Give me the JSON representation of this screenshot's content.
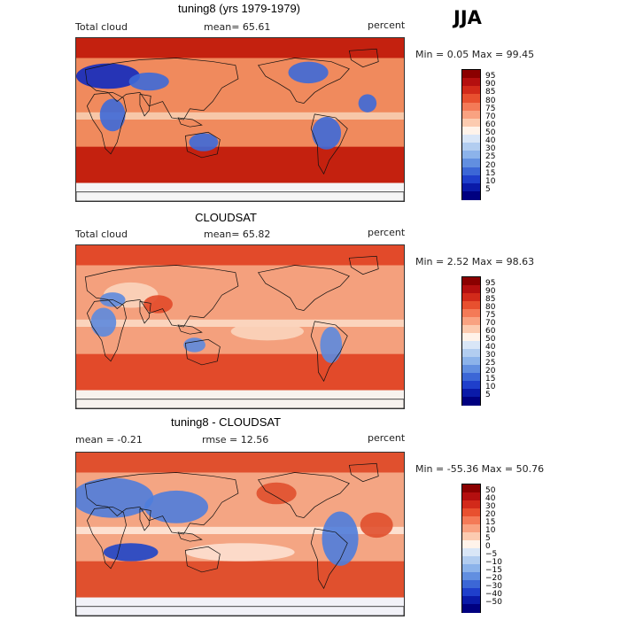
{
  "season": "JJA",
  "panels": [
    {
      "title": "tuning8 (yrs 1979-1979)",
      "left": "Total cloud",
      "center": "mean=  65.61",
      "right": "percent",
      "minmax": "Min =   0.05 Max =  99.45",
      "colorbar": {
        "labels": [
          "95",
          "90",
          "85",
          "80",
          "75",
          "70",
          "60",
          "50",
          "40",
          "30",
          "25",
          "20",
          "15",
          "10",
          "5"
        ],
        "colors": [
          "#8b0000",
          "#b40f0f",
          "#d22a1a",
          "#e8502f",
          "#f47a57",
          "#f9a281",
          "#fccbb0",
          "#fff3ea",
          "#d9e6f7",
          "#b2cdf0",
          "#8cb3ea",
          "#628fe0",
          "#3c67d6",
          "#1f3fcb",
          "#0a1aa8",
          "#000080"
        ]
      },
      "map_colors": {
        "high": "#c4210f",
        "mid": "#f08a5d",
        "low": "#f7c7a8",
        "blue": "#3d69d8",
        "deepblue": "#102ac0",
        "white": "#f5f5f5"
      }
    },
    {
      "title": "CLOUDSAT",
      "left": "Total cloud",
      "center": "mean=  65.82",
      "right": "percent",
      "minmax": "Min =   2.52 Max =  98.63",
      "colorbar": {
        "labels": [
          "95",
          "90",
          "85",
          "80",
          "75",
          "70",
          "60",
          "50",
          "40",
          "30",
          "25",
          "20",
          "15",
          "10",
          "5"
        ],
        "colors": [
          "#8b0000",
          "#b40f0f",
          "#d22a1a",
          "#e8502f",
          "#f47a57",
          "#f9a281",
          "#fccbb0",
          "#fff3ea",
          "#d9e6f7",
          "#b2cdf0",
          "#8cb3ea",
          "#628fe0",
          "#3c67d6",
          "#1f3fcb",
          "#0a1aa8",
          "#000080"
        ]
      },
      "map_colors": {
        "high": "#e24a2a",
        "mid": "#f4a07d",
        "low": "#fbd4bd",
        "blue": "#5d89de",
        "deepblue": "#2a4ed0",
        "white": "#f7f2ee"
      }
    },
    {
      "title": "tuning8 - CLOUDSAT",
      "left": "mean =  -0.21",
      "center": "rmse =  12.56",
      "right": "percent",
      "minmax": "Min = -55.36 Max =  50.76",
      "colorbar": {
        "labels": [
          "50",
          "40",
          "30",
          "20",
          "15",
          "10",
          "5",
          "0",
          "−5",
          "−10",
          "−15",
          "−20",
          "−30",
          "−40",
          "−50"
        ],
        "colors": [
          "#8b0000",
          "#b40f0f",
          "#d22a1a",
          "#e8502f",
          "#f47a57",
          "#f9a281",
          "#fccbb0",
          "#fff3ea",
          "#d9e6f7",
          "#b2cdf0",
          "#8cb3ea",
          "#628fe0",
          "#3c67d6",
          "#1f3fcb",
          "#0a1aa8",
          "#000080"
        ]
      },
      "map_colors": {
        "high": "#e0502e",
        "mid": "#f4a583",
        "low": "#fde0d0",
        "blue": "#4f7ddb",
        "deepblue": "#1e45c8",
        "white": "#f2f2f8"
      }
    }
  ]
}
